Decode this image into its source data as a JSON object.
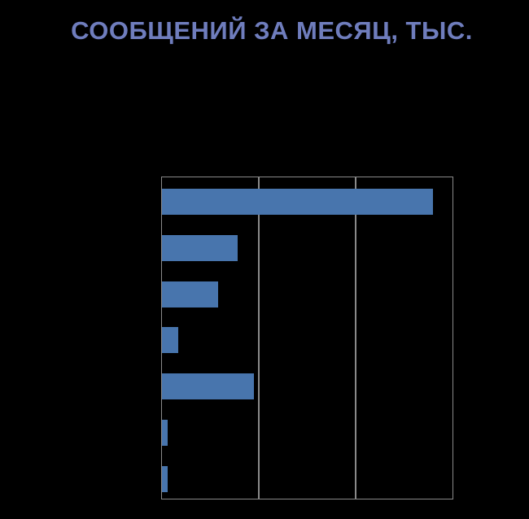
{
  "title": "СООБЩЕНИЙ ЗА МЕСЯЦ, ТЫС.",
  "colors": {
    "background": "#000000",
    "title": "#6F7DBD",
    "bar": "#4875AD",
    "grid": "#8A8A8A"
  },
  "chart_data": {
    "type": "bar",
    "orientation": "horizontal",
    "title": "СООБЩЕНИЙ ЗА МЕСЯЦ, ТЫС.",
    "categories": [
      "",
      "",
      "",
      "",
      "",
      "",
      ""
    ],
    "values": [
      280,
      78,
      58,
      17,
      95,
      6,
      6
    ],
    "xlabel": "",
    "ylabel": "",
    "xlim": [
      0,
      300
    ],
    "gridlines_x": [
      100,
      200
    ],
    "grid": true,
    "legend_position": "none",
    "axis_tick_labels_visible": false,
    "data_labels_visible": false
  }
}
